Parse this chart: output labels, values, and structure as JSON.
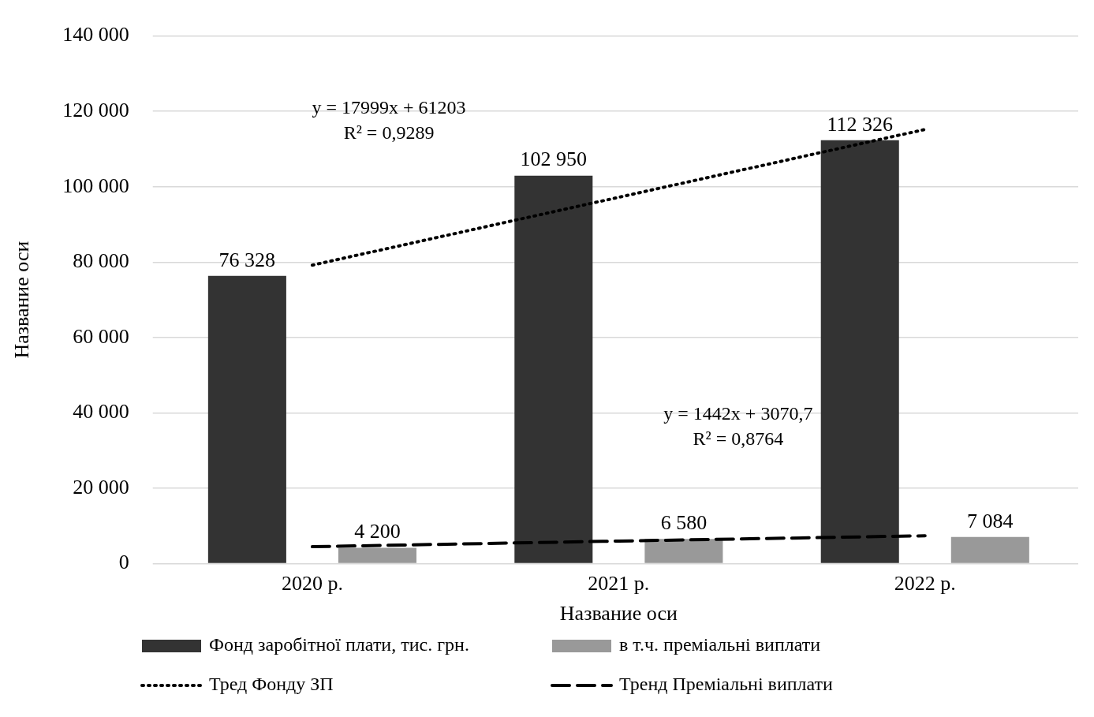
{
  "chart_data": {
    "type": "bar",
    "categories": [
      "2020 р.",
      "2021 р.",
      "2022 р."
    ],
    "xlabel": "Название оси",
    "ylabel": "Название оси",
    "ylim": [
      0,
      140000
    ],
    "yticks": [
      {
        "value": 0,
        "label": "0"
      },
      {
        "value": 20000,
        "label": "20 000"
      },
      {
        "value": 40000,
        "label": "40 000"
      },
      {
        "value": 60000,
        "label": "60 000"
      },
      {
        "value": 80000,
        "label": "80 000"
      },
      {
        "value": 100000,
        "label": "100 000"
      },
      {
        "value": 120000,
        "label": "120 000"
      },
      {
        "value": 140000,
        "label": "140 000"
      }
    ],
    "grid": "y",
    "legend": "bottom",
    "series": [
      {
        "name": "Фонд заробітної плати, тис. грн.",
        "color": "#333333",
        "values": [
          76328,
          102950,
          112326
        ],
        "value_labels": [
          "76 328",
          "102 950",
          "112 326"
        ]
      },
      {
        "name": "в т.ч. преміальні виплати",
        "color": "#999999",
        "values": [
          4200,
          6580,
          7084
        ],
        "value_labels": [
          "4 200",
          "6 580",
          "7 084"
        ]
      },
      {
        "name": "Тред Фонду ЗП",
        "type": "line",
        "color": "#000000",
        "line_style": "dotted",
        "values": [
          79200,
          97200,
          115200
        ]
      },
      {
        "name": "Тренд Преміальні виплати",
        "type": "line",
        "color": "#000000",
        "line_style": "dashed",
        "values": [
          4500,
          6000,
          7400
        ]
      }
    ],
    "annotations": [
      "y = 17999x + 61203\nR² = 0,9289",
      "y = 1442x + 3070,7\nR² = 0,8764"
    ]
  }
}
